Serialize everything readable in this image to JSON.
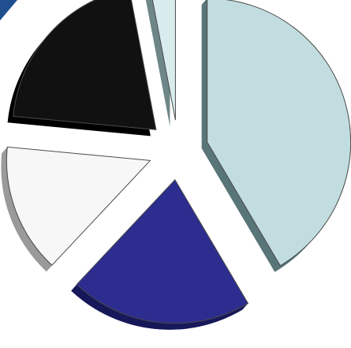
{
  "chart_data": {
    "type": "pie",
    "style": "exploded-3d",
    "legend": "none",
    "values": [
      41.5,
      20.5,
      14.5,
      20.5,
      3.0
    ],
    "colors": [
      "#c2dde0",
      "#2c2d8e",
      "#f7f7f7",
      "#111111",
      "#d8ecee"
    ],
    "side_colors": [
      "#587578",
      "#17185a",
      "#9a9a9a",
      "#000000",
      "#6e8688"
    ]
  },
  "decorations": {
    "corner_accent_color": "#1f4f8f"
  }
}
